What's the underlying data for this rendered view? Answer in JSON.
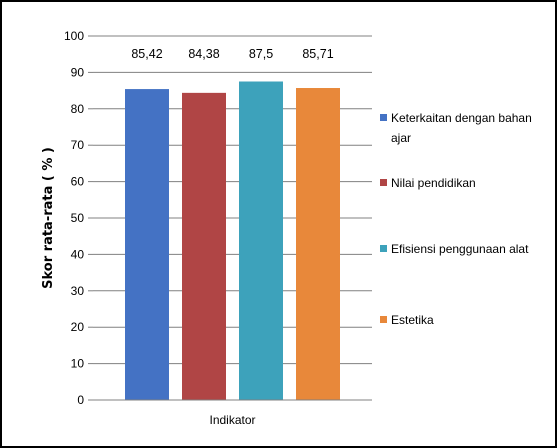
{
  "chart_data": {
    "type": "bar",
    "xlabel": "Indikator",
    "ylabel": "Skor rata-rata ( % )",
    "ylim": [
      0,
      100
    ],
    "yticks": [
      0,
      10,
      20,
      30,
      40,
      50,
      60,
      70,
      80,
      90,
      100
    ],
    "grid": true,
    "legend_position": "right",
    "series": [
      {
        "name": "Keterkaitan dengan bahan ajar",
        "value": 85.42,
        "label": "85,42",
        "color": "#4472C4"
      },
      {
        "name": "Nilai pendidikan",
        "value": 84.38,
        "label": "84,38",
        "color": "#B04545"
      },
      {
        "name": "Efisiensi penggunaan alat",
        "value": 87.5,
        "label": "87,5",
        "color": "#3DA2BB"
      },
      {
        "name": "Estetika",
        "value": 85.71,
        "label": "85,71",
        "color": "#E8883A"
      }
    ]
  }
}
